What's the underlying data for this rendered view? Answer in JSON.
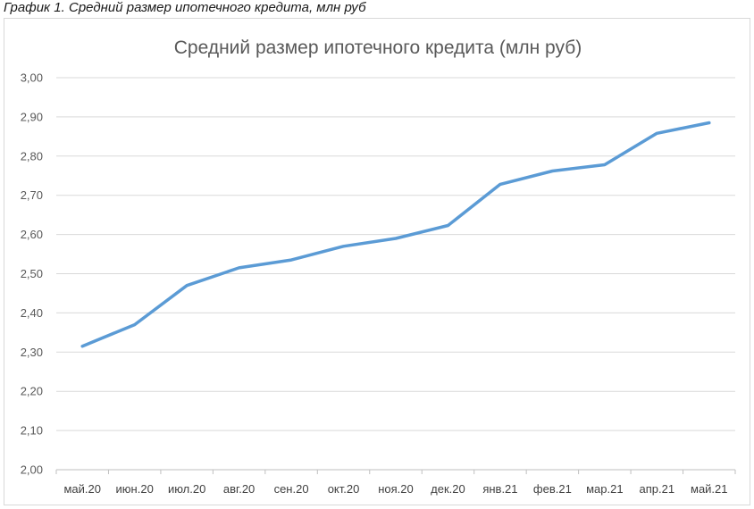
{
  "caption": "График 1. Средний размер ипотечного кредита, млн руб",
  "chart_data": {
    "type": "line",
    "title": "Средний размер ипотечного кредита (млн руб)",
    "xlabel": "",
    "ylabel": "",
    "categories": [
      "май.20",
      "июн.20",
      "июл.20",
      "авг.20",
      "сен.20",
      "окт.20",
      "ноя.20",
      "дек.20",
      "янв.21",
      "фев.21",
      "мар.21",
      "апр.21",
      "май.21"
    ],
    "series": [
      {
        "values": [
          2.315,
          2.37,
          2.47,
          2.515,
          2.535,
          2.57,
          2.59,
          2.623,
          2.728,
          2.762,
          2.778,
          2.858,
          2.885
        ]
      }
    ],
    "ylim": [
      2.0,
      3.0
    ],
    "yticks": [
      "2,00",
      "2,10",
      "2,20",
      "2,30",
      "2,40",
      "2,50",
      "2,60",
      "2,70",
      "2,80",
      "2,90",
      "3,00"
    ],
    "grid": true,
    "legend": "none",
    "line_color": "#5b9bd5",
    "grid_color": "#d9d9d9"
  }
}
